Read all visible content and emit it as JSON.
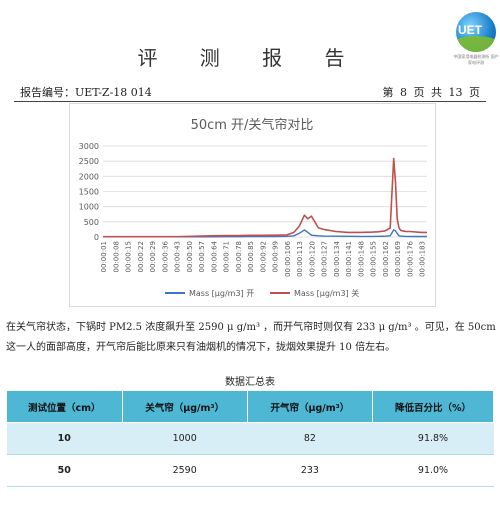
{
  "header": {
    "title": "评 测 报 告",
    "report_no": "报告编号：UET-Z-18 014",
    "page_info": "第 8 页 共 13 页",
    "logo_text": "UET",
    "logo_subtitle": "中国家用电器检测所 国产家电评测"
  },
  "chart_data": {
    "type": "line",
    "title": "50cm 开/关气帘对比",
    "ylim": [
      0,
      3000
    ],
    "yticks": [
      0,
      500,
      1000,
      1500,
      2000,
      2500,
      3000
    ],
    "grid": true,
    "legend_position": "bottom",
    "xticks": [
      "00:00:01",
      "00:00:08",
      "00:00:15",
      "00:00:22",
      "00:00:29",
      "00:00:36",
      "00:00:43",
      "00:00:50",
      "00:00:57",
      "00:01:04",
      "00:01:11",
      "00:01:18",
      "00:01:25",
      "00:01:32",
      "00:01:39",
      "00:01:46",
      "00:01:53",
      "00:02:00",
      "00:02:07",
      "00:02:14",
      "00:02:21",
      "00:02:28",
      "00:02:35",
      "00:02:42",
      "00:02:49",
      "00:02:56",
      "00:03:03"
    ],
    "xtick_labels_display": [
      "00:00:01",
      "00:00:08",
      "00:00:15",
      "00:00:22",
      "00:00:29",
      "00:00:36",
      "00:00:43",
      "00:00:50",
      "00:00:57",
      "00:00:64",
      "00:00:71",
      "00:00:78",
      "00:00:85",
      "00:00:92",
      "00:00:99",
      "00:00:106",
      "00:00:113",
      "00:00:120",
      "00:00:127",
      "00:00:134",
      "00:00:141",
      "00:00:148",
      "00:00:155",
      "00:00:162",
      "00:00:169",
      "00:00:176",
      "00:00:183"
    ],
    "x_seconds": [
      1,
      8,
      15,
      22,
      29,
      36,
      43,
      50,
      57,
      64,
      71,
      78,
      85,
      92,
      99,
      106,
      110,
      113,
      116,
      118,
      120,
      124,
      127,
      134,
      141,
      148,
      155,
      158,
      162,
      165,
      167,
      168,
      169,
      170,
      171,
      172,
      174,
      176,
      183,
      186
    ],
    "series": [
      {
        "name": "Mass [µg/m3] 开",
        "color": "#4472c4",
        "values": [
          5,
          5,
          5,
          5,
          5,
          5,
          5,
          5,
          5,
          8,
          10,
          10,
          12,
          15,
          18,
          22,
          40,
          120,
          233,
          150,
          60,
          40,
          30,
          25,
          22,
          20,
          20,
          22,
          25,
          40,
          233,
          200,
          120,
          40,
          30,
          25,
          20,
          18,
          15,
          15
        ]
      },
      {
        "name": "Mass [µg/m3] 关",
        "color": "#c0504d",
        "values": [
          10,
          10,
          10,
          10,
          10,
          10,
          10,
          20,
          30,
          40,
          45,
          50,
          55,
          55,
          60,
          70,
          150,
          350,
          720,
          600,
          690,
          300,
          250,
          180,
          150,
          150,
          160,
          170,
          200,
          300,
          2590,
          1800,
          600,
          300,
          220,
          200,
          180,
          180,
          150,
          150
        ]
      }
    ]
  },
  "paragraph": "在关气帘状态，下锅时 PM2.5 浓度飙升至 2590 μ g/m³ ，而开气帘时则仅有 233 μ g/m³ 。可见，在 50cm 这一人的面部高度，开气帘后能比原来只有油烟机的情况下，拢烟效果提升 10 倍左右。",
  "table": {
    "title": "数据汇总表",
    "headers": [
      "测试位置（cm）",
      "关气帘（μg/m³）",
      "开气帘（μg/m³）",
      "降低百分比（%）"
    ],
    "rows": [
      [
        "10",
        "1000",
        "82",
        "91.8%"
      ],
      [
        "50",
        "2590",
        "233",
        "91.0%"
      ]
    ]
  }
}
